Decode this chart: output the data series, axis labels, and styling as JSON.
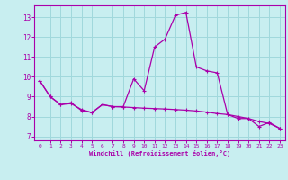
{
  "xlabel": "Windchill (Refroidissement éolien,°C)",
  "bg_color": "#c8eef0",
  "grid_color": "#a0d8dc",
  "line_color": "#aa00aa",
  "xlim": [
    -0.5,
    23.5
  ],
  "ylim": [
    6.8,
    13.6
  ],
  "yticks": [
    7,
    8,
    9,
    10,
    11,
    12,
    13
  ],
  "xticks": [
    0,
    1,
    2,
    3,
    4,
    5,
    6,
    7,
    8,
    9,
    10,
    11,
    12,
    13,
    14,
    15,
    16,
    17,
    18,
    19,
    20,
    21,
    22,
    23
  ],
  "hours": [
    0,
    1,
    2,
    3,
    4,
    5,
    6,
    7,
    8,
    9,
    10,
    11,
    12,
    13,
    14,
    15,
    16,
    17,
    18,
    19,
    20,
    21,
    22,
    23
  ],
  "temp": [
    9.8,
    9.0,
    8.6,
    8.7,
    8.3,
    8.2,
    8.6,
    8.5,
    8.5,
    9.9,
    9.3,
    11.5,
    11.9,
    13.1,
    13.25,
    10.5,
    10.3,
    10.2,
    8.1,
    7.9,
    7.9,
    7.5,
    7.7,
    7.4
  ],
  "windchill": [
    9.8,
    9.0,
    8.6,
    8.65,
    8.35,
    8.2,
    8.6,
    8.5,
    8.48,
    8.45,
    8.42,
    8.4,
    8.38,
    8.35,
    8.32,
    8.28,
    8.22,
    8.15,
    8.1,
    8.0,
    7.9,
    7.75,
    7.65,
    7.4
  ]
}
